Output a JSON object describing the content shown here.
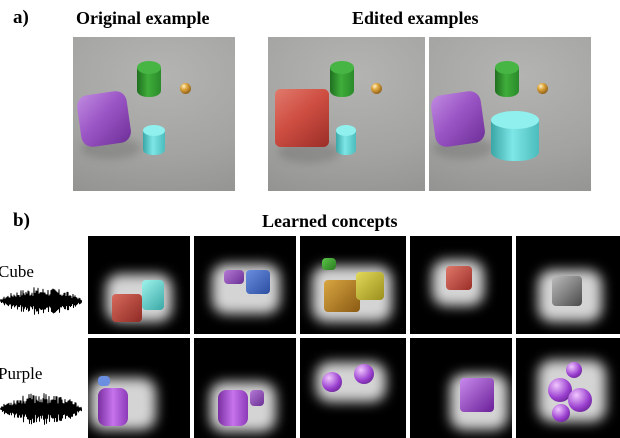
{
  "panel_a": {
    "letter": "a)",
    "original_title": "Original example",
    "edited_title": "Edited examples"
  },
  "panel_b": {
    "letter": "b)",
    "title": "Learned concepts",
    "rows": [
      {
        "label": "Cube"
      },
      {
        "label": "Purple"
      }
    ]
  },
  "colors": {
    "background": "#ffffff",
    "scene_floor": "#a6a6a4",
    "mask_background": "#000000",
    "green": "#3fae3a",
    "cyan": "#7ee6e6",
    "purple": "#9b56c6",
    "red": "#cf4e42",
    "gold": "#e0a840",
    "waveform": "#000000"
  }
}
